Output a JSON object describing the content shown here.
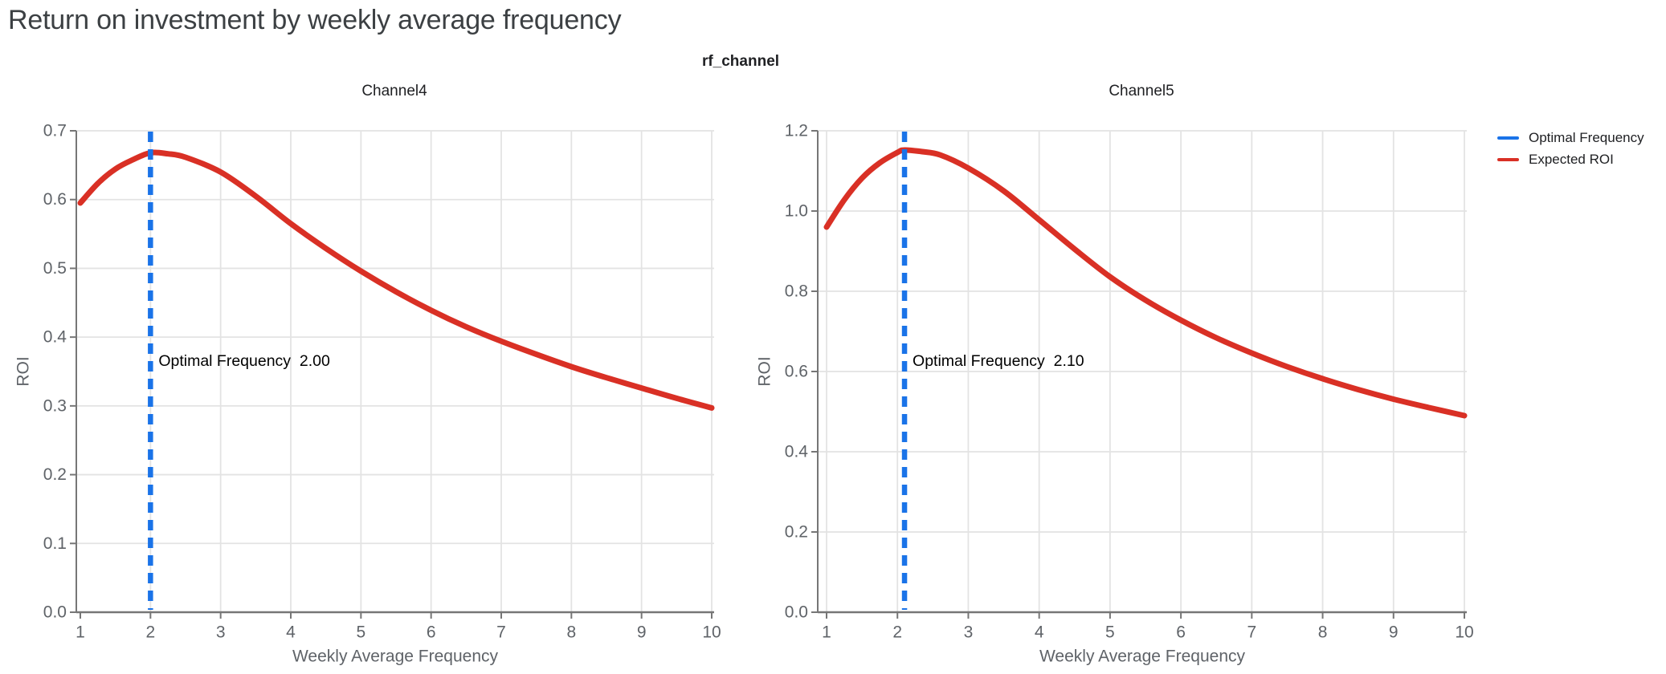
{
  "page": {
    "title": "Return on investment by weekly average frequency"
  },
  "figure": {
    "title": "rf_channel",
    "legend": [
      {
        "label": "Optimal Frequency",
        "color": "#1a73e8"
      },
      {
        "label": "Expected ROI",
        "color": "#d93025"
      }
    ],
    "colors": {
      "optimal_frequency_line": "#1a73e8",
      "expected_roi_curve": "#d93025",
      "axis_text": "#5f6368",
      "gridline": "#e3e3e3",
      "axis_line": "#767676",
      "title_text": "#3c4043"
    }
  },
  "chart_data": [
    {
      "type": "line",
      "subplot_title": "Channel4",
      "xlabel": "Weekly Average Frequency",
      "ylabel": "ROI",
      "xlim": [
        1,
        10
      ],
      "ylim": [
        0.0,
        0.7
      ],
      "x_ticks": [
        1,
        2,
        3,
        4,
        5,
        6,
        7,
        8,
        9,
        10
      ],
      "y_ticks": [
        0.0,
        0.1,
        0.2,
        0.3,
        0.4,
        0.5,
        0.6,
        0.7
      ],
      "grid": true,
      "optimal_frequency": 2.0,
      "annotation": "Optimal Frequency  2.00",
      "series": [
        {
          "name": "Expected ROI",
          "x": [
            1,
            1.25,
            1.5,
            1.75,
            2,
            2.25,
            2.5,
            3,
            3.5,
            4,
            4.5,
            5,
            5.5,
            6,
            6.5,
            7,
            7.5,
            8,
            8.5,
            9,
            9.5,
            10
          ],
          "y": [
            0.595,
            0.6235,
            0.6445,
            0.658,
            0.668,
            0.6665,
            0.6615,
            0.64,
            0.605,
            0.565,
            0.529,
            0.496,
            0.466,
            0.439,
            0.415,
            0.394,
            0.375,
            0.357,
            0.341,
            0.326,
            0.311,
            0.297
          ]
        }
      ]
    },
    {
      "type": "line",
      "subplot_title": "Channel5",
      "xlabel": "Weekly Average Frequency",
      "ylabel": "ROI",
      "xlim": [
        1,
        10
      ],
      "ylim": [
        0.0,
        1.2
      ],
      "x_ticks": [
        1,
        2,
        3,
        4,
        5,
        6,
        7,
        8,
        9,
        10
      ],
      "y_ticks": [
        0.0,
        0.2,
        0.4,
        0.6,
        0.8,
        1.0,
        1.2
      ],
      "grid": true,
      "optimal_frequency": 2.1,
      "annotation": "Optimal Frequency  2.10",
      "series": [
        {
          "name": "Expected ROI",
          "x": [
            1,
            1.25,
            1.5,
            1.75,
            2,
            2.1,
            2.35,
            2.6,
            3,
            3.5,
            4,
            4.5,
            5,
            5.5,
            6,
            6.5,
            7,
            7.5,
            8,
            8.5,
            9,
            9.5,
            10
          ],
          "y": [
            0.96,
            1.028,
            1.082,
            1.12,
            1.146,
            1.152,
            1.148,
            1.14,
            1.107,
            1.05,
            0.978,
            0.905,
            0.836,
            0.778,
            0.728,
            0.684,
            0.646,
            0.612,
            0.582,
            0.555,
            0.531,
            0.51,
            0.49
          ]
        }
      ]
    }
  ]
}
